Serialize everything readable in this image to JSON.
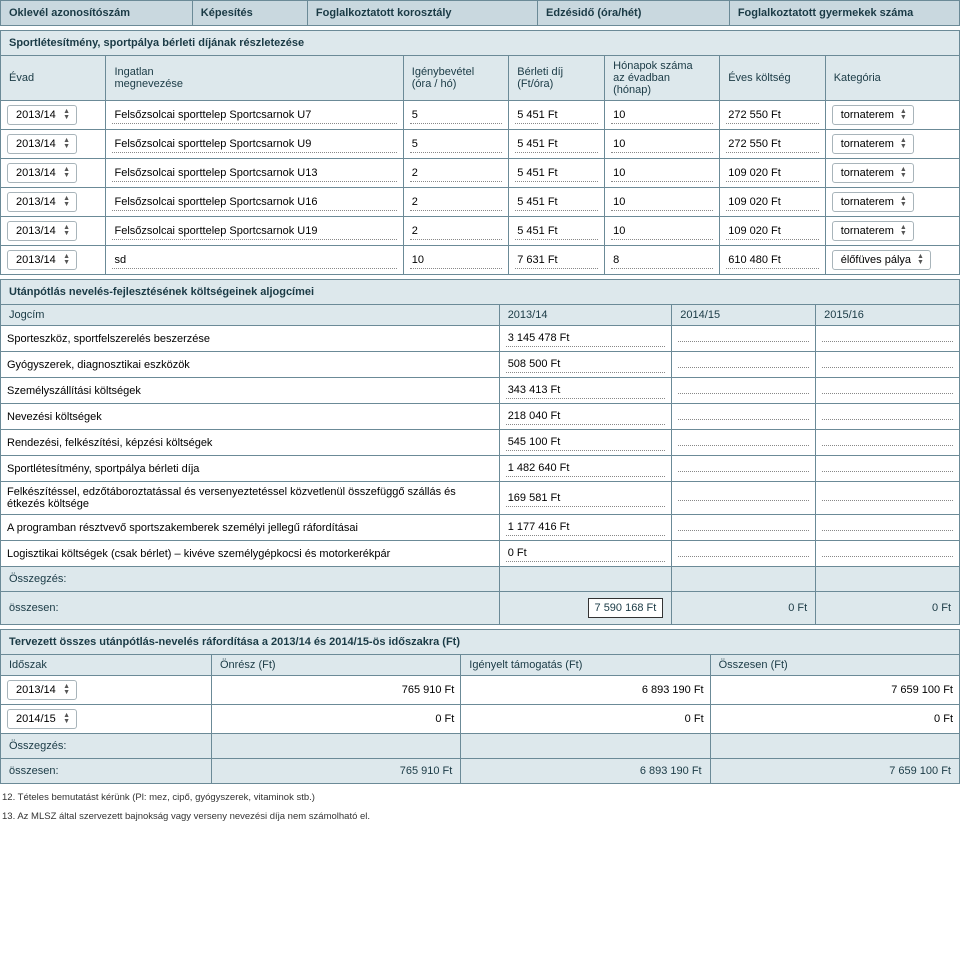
{
  "colors": {
    "header_bg": "#c9d8df",
    "subheader_bg": "#dde8ec",
    "border": "#6b8a97",
    "text": "#1a3a45"
  },
  "top_table": {
    "headers": [
      "Oklevél azonosítószám",
      "Képesítés",
      "Foglalkoztatott korosztály",
      "Edzésidő (óra/hét)",
      "Foglalkoztatott gyermekek száma"
    ]
  },
  "rental": {
    "title": "Sportlétesítmény, sportpálya bérleti díjának részletezése",
    "headers": {
      "evad": "Évad",
      "ingatlan": "Ingatlan\nmegnevezése",
      "igeny": "Igénybevétel\n(óra / hó)",
      "berleti": "Bérleti díj\n(Ft/óra)",
      "honapok": "Hónapok száma\naz évadban\n(hónap)",
      "eves": "Éves költség",
      "kat": "Kategória"
    },
    "rows": [
      {
        "evad": "2013/14",
        "ingatlan": "Felsőzsolcai sporttelep Sportcsarnok U7",
        "igeny": "5",
        "berleti": "5 451 Ft",
        "honapok": "10",
        "eves": "272 550 Ft",
        "kat": "tornaterem"
      },
      {
        "evad": "2013/14",
        "ingatlan": "Felsőzsolcai sporttelep Sportcsarnok U9",
        "igeny": "5",
        "berleti": "5 451 Ft",
        "honapok": "10",
        "eves": "272 550 Ft",
        "kat": "tornaterem"
      },
      {
        "evad": "2013/14",
        "ingatlan": "Felsőzsolcai sporttelep Sportcsarnok U13",
        "igeny": "2",
        "berleti": "5 451 Ft",
        "honapok": "10",
        "eves": "109 020 Ft",
        "kat": "tornaterem"
      },
      {
        "evad": "2013/14",
        "ingatlan": "Felsőzsolcai sporttelep Sportcsarnok U16",
        "igeny": "2",
        "berleti": "5 451 Ft",
        "honapok": "10",
        "eves": "109 020 Ft",
        "kat": "tornaterem"
      },
      {
        "evad": "2013/14",
        "ingatlan": "Felsőzsolcai sporttelep Sportcsarnok U19",
        "igeny": "2",
        "berleti": "5 451 Ft",
        "honapok": "10",
        "eves": "109 020 Ft",
        "kat": "tornaterem"
      },
      {
        "evad": "2013/14",
        "ingatlan": "sd",
        "igeny": "10",
        "berleti": "7 631 Ft",
        "honapok": "8",
        "eves": "610 480 Ft",
        "kat": "élőfüves pálya"
      }
    ]
  },
  "subcosts": {
    "title": "Utánpótlás nevelés-fejlesztésének költségeinek aljogcímei",
    "headers": {
      "jogcim": "Jogcím",
      "y1": "2013/14",
      "y2": "2014/15",
      "y3": "2015/16"
    },
    "rows": [
      {
        "label": "Sporteszköz, sportfelszerelés beszerzése",
        "v": "3 145 478 Ft"
      },
      {
        "label": "Gyógyszerek, diagnosztikai eszközök",
        "v": "508 500 Ft"
      },
      {
        "label": "Személyszállítási költségek",
        "v": "343 413 Ft"
      },
      {
        "label": "Nevezési költségek",
        "v": "218 040 Ft"
      },
      {
        "label": "Rendezési, felkészítési, képzési költségek",
        "v": "545 100 Ft"
      },
      {
        "label": "Sportlétesítmény, sportpálya bérleti díja",
        "v": "1 482 640 Ft"
      },
      {
        "label": "Felkészítéssel, edzőtáboroztatással és versenyeztetéssel közvetlenül összefüggő szállás és étkezés költsége",
        "v": "169 581 Ft"
      },
      {
        "label": "A programban résztvevő sportszakemberek személyi jellegű ráfordításai",
        "v": "1 177 416 Ft"
      },
      {
        "label": "Logisztikai költségek (csak bérlet) – kivéve személygépkocsi és motorkerékpár",
        "v": "0 Ft"
      }
    ],
    "summary_label1": "Összegzés:",
    "summary_label2": "összesen:",
    "summary": {
      "y1": "7 590 168 Ft",
      "y2": "0 Ft",
      "y3": "0 Ft"
    }
  },
  "planned": {
    "title": "Tervezett összes utánpótlás-nevelés ráfordítása a 2013/14 és 2014/15-ös időszakra (Ft)",
    "headers": {
      "idoszak": "Időszak",
      "onresz": "Önrész (Ft)",
      "igenyelt": "Igényelt támogatás (Ft)",
      "osszesen": "Összesen (Ft)"
    },
    "rows": [
      {
        "idoszak": "2013/14",
        "onresz": "765 910 Ft",
        "igenyelt": "6 893 190 Ft",
        "osszesen": "7 659 100 Ft"
      },
      {
        "idoszak": "2014/15",
        "onresz": "0 Ft",
        "igenyelt": "0 Ft",
        "osszesen": "0 Ft"
      }
    ],
    "summary_label1": "Összegzés:",
    "summary_label2": "összesen:",
    "summary": {
      "onresz": "765 910 Ft",
      "igenyelt": "6 893 190 Ft",
      "osszesen": "7 659 100 Ft"
    }
  },
  "footnotes": {
    "n12": "12. Tételes bemutatást kérünk (Pl: mez, cipő, gyógyszerek, vitaminok stb.)",
    "n13": "13. Az MLSZ által szervezett bajnokság vagy verseny nevezési díja nem számolható el."
  }
}
